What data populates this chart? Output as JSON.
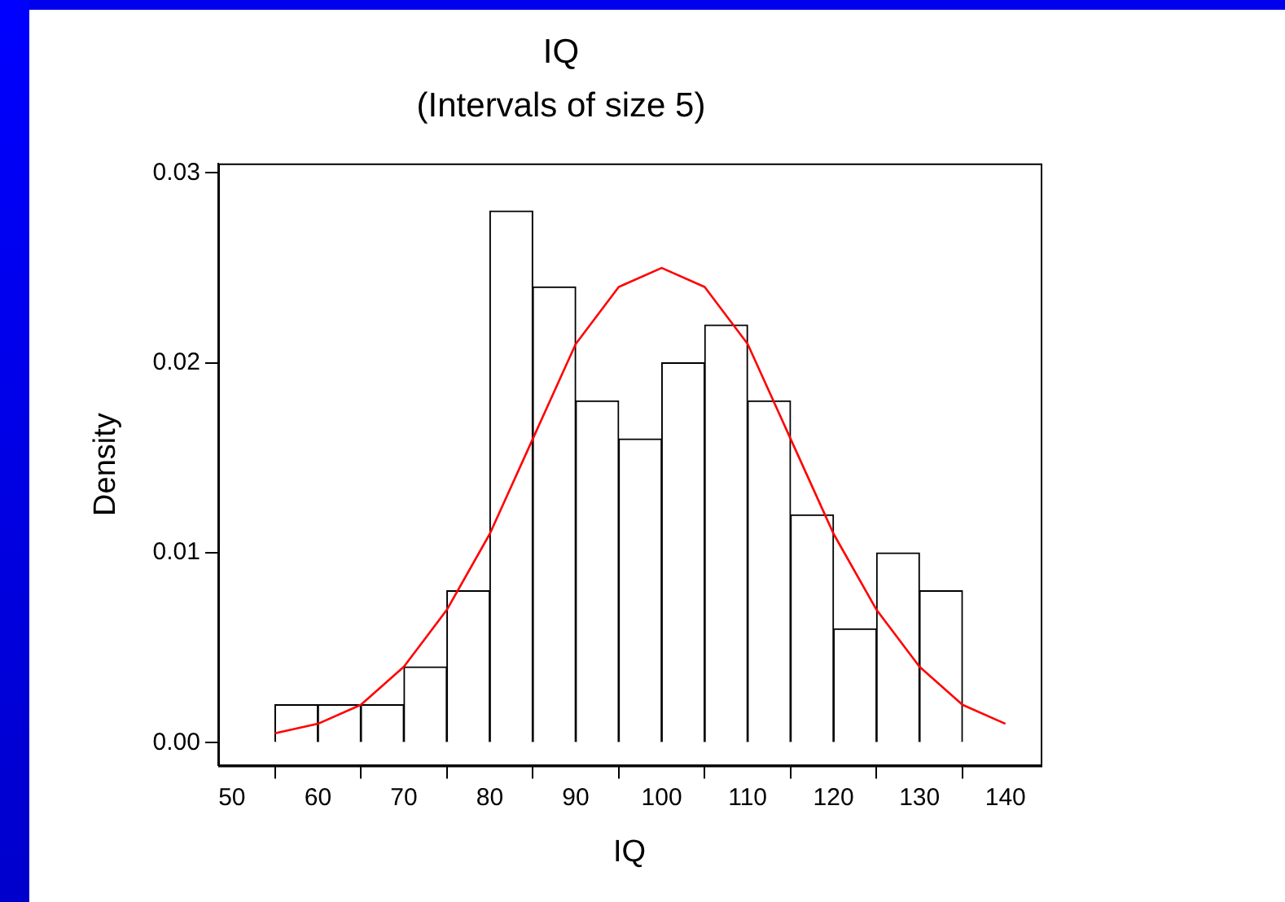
{
  "chart_data": {
    "type": "histogram",
    "title": "IQ",
    "subtitle": "(Intervals of size 5)",
    "xlabel": "IQ",
    "ylabel": "Density",
    "bins": [
      55,
      60,
      65,
      70,
      75,
      80,
      85,
      90,
      95,
      100,
      105,
      110,
      115,
      120,
      125,
      130,
      135
    ],
    "values": [
      0.002,
      0.002,
      0.002,
      0.004,
      0.008,
      0.028,
      0.024,
      0.018,
      0.016,
      0.02,
      0.022,
      0.018,
      0.012,
      0.006,
      0.01,
      0.008
    ],
    "color": "#ffffff",
    "series": [
      {
        "type": "line",
        "color": "#ff0000",
        "x": [
          55,
          60,
          65,
          70,
          75,
          80,
          85,
          90,
          95,
          100,
          105,
          110,
          115,
          120,
          125,
          130,
          135,
          140
        ],
        "values": [
          0.0005,
          0.001,
          0.002,
          0.004,
          0.007,
          0.011,
          0.016,
          0.021,
          0.024,
          0.025,
          0.024,
          0.021,
          0.016,
          0.011,
          0.007,
          0.004,
          0.002,
          0.001
        ]
      }
    ],
    "xlim": [
      48.4,
      144.1
    ],
    "xticks": [
      50,
      60,
      70,
      80,
      90,
      100,
      110,
      120,
      130,
      140
    ],
    "ylim": [
      -0.0012,
      0.0305
    ],
    "yticks": [
      {
        "value": 0,
        "label": "0.00"
      },
      0.01,
      0.02,
      0.03
    ]
  }
}
